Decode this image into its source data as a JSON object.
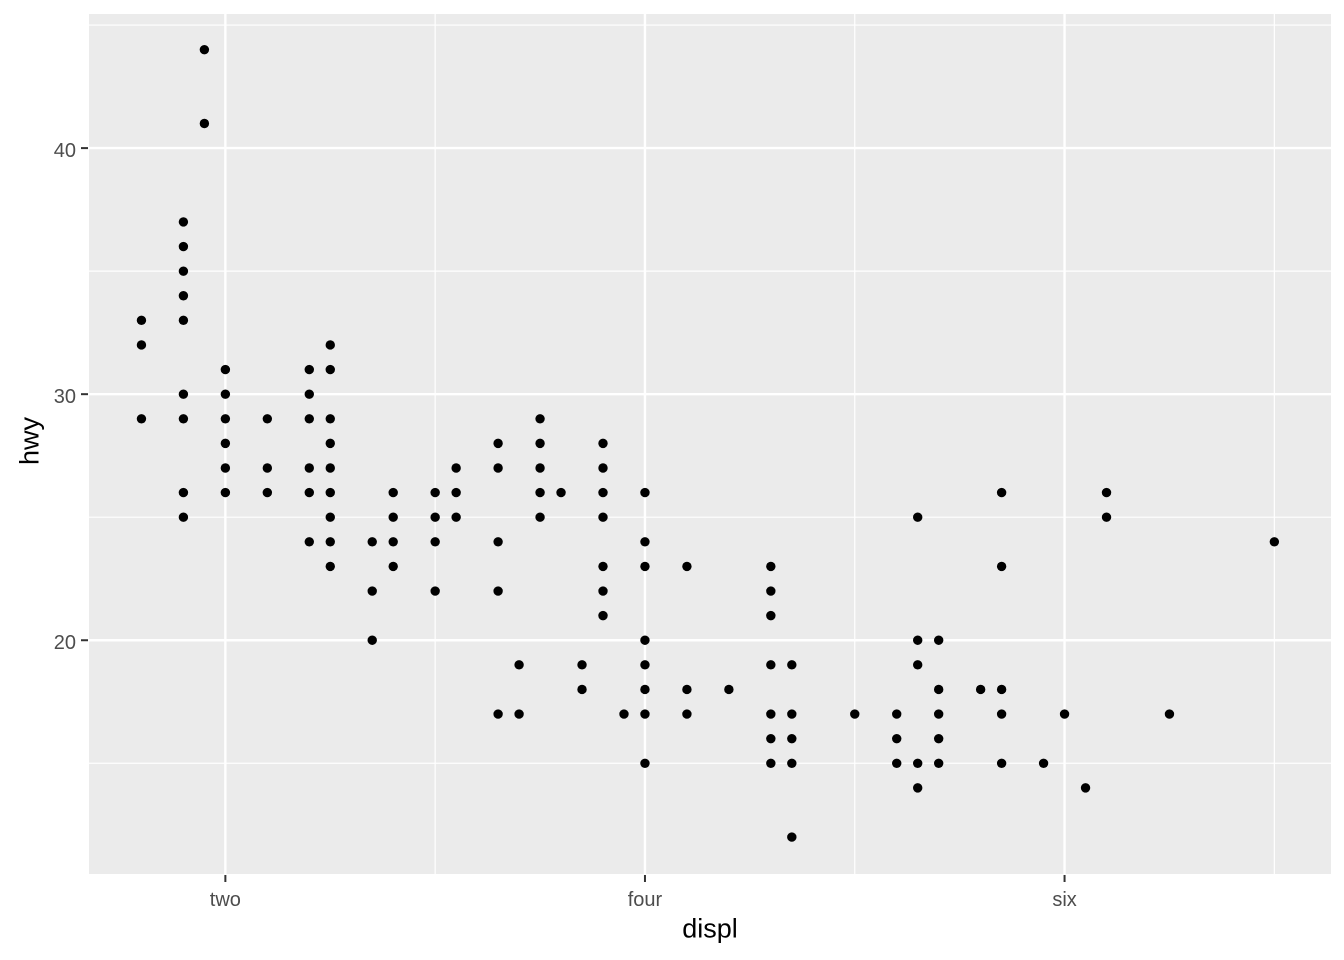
{
  "figure": {
    "background": "#FFFFFF",
    "panel_background": "#EBEBEB",
    "grid_color": "#FFFFFF",
    "point_color": "#000000",
    "tick_label_color": "#4D4D4D",
    "tick_mark_color": "#333333",
    "axis_title_color": "#000000"
  },
  "chart_data": {
    "type": "scatter",
    "title": "",
    "xlabel": "displ",
    "ylabel": "hwy",
    "grid": true,
    "legend": "none",
    "xlim": [
      1.35,
      7.27
    ],
    "ylim": [
      10.5,
      45.45
    ],
    "x_major_ticks": [
      {
        "value": 2,
        "label": "two"
      },
      {
        "value": 4,
        "label": "four"
      },
      {
        "value": 6,
        "label": "six"
      }
    ],
    "x_minor_ticks": [
      3,
      5,
      7
    ],
    "y_major_ticks": [
      {
        "value": 20,
        "label": "20"
      },
      {
        "value": 30,
        "label": "30"
      },
      {
        "value": 40,
        "label": "40"
      }
    ],
    "y_minor_ticks": [
      15,
      25,
      35,
      45
    ],
    "points": [
      [
        1.6,
        33
      ],
      [
        1.6,
        32
      ],
      [
        1.6,
        29
      ],
      [
        1.8,
        37
      ],
      [
        1.8,
        36
      ],
      [
        1.8,
        35
      ],
      [
        1.8,
        34
      ],
      [
        1.8,
        33
      ],
      [
        1.8,
        30
      ],
      [
        1.8,
        29
      ],
      [
        1.8,
        26
      ],
      [
        1.8,
        25
      ],
      [
        1.9,
        44
      ],
      [
        1.9,
        41
      ],
      [
        2.0,
        31
      ],
      [
        2.0,
        30
      ],
      [
        2.0,
        29
      ],
      [
        2.0,
        28
      ],
      [
        2.0,
        27
      ],
      [
        2.0,
        26
      ],
      [
        2.2,
        29
      ],
      [
        2.2,
        27
      ],
      [
        2.2,
        26
      ],
      [
        2.4,
        31
      ],
      [
        2.4,
        30
      ],
      [
        2.4,
        29
      ],
      [
        2.4,
        27
      ],
      [
        2.4,
        26
      ],
      [
        2.4,
        24
      ],
      [
        2.5,
        32
      ],
      [
        2.5,
        31
      ],
      [
        2.5,
        29
      ],
      [
        2.5,
        28
      ],
      [
        2.5,
        27
      ],
      [
        2.5,
        26
      ],
      [
        2.5,
        25
      ],
      [
        2.5,
        24
      ],
      [
        2.5,
        23
      ],
      [
        2.7,
        24
      ],
      [
        2.7,
        22
      ],
      [
        2.7,
        20
      ],
      [
        2.8,
        26
      ],
      [
        2.8,
        25
      ],
      [
        2.8,
        24
      ],
      [
        2.8,
        23
      ],
      [
        3.0,
        26
      ],
      [
        3.0,
        25
      ],
      [
        3.0,
        24
      ],
      [
        3.0,
        22
      ],
      [
        3.1,
        27
      ],
      [
        3.1,
        26
      ],
      [
        3.1,
        25
      ],
      [
        3.3,
        28
      ],
      [
        3.3,
        27
      ],
      [
        3.3,
        24
      ],
      [
        3.3,
        22
      ],
      [
        3.3,
        17
      ],
      [
        3.4,
        19
      ],
      [
        3.4,
        17
      ],
      [
        3.5,
        29
      ],
      [
        3.5,
        28
      ],
      [
        3.5,
        27
      ],
      [
        3.5,
        26
      ],
      [
        3.5,
        25
      ],
      [
        3.6,
        26
      ],
      [
        3.7,
        19
      ],
      [
        3.7,
        18
      ],
      [
        3.8,
        28
      ],
      [
        3.8,
        27
      ],
      [
        3.8,
        26
      ],
      [
        3.8,
        25
      ],
      [
        3.8,
        23
      ],
      [
        3.8,
        22
      ],
      [
        3.8,
        21
      ],
      [
        3.9,
        17
      ],
      [
        4.0,
        26
      ],
      [
        4.0,
        24
      ],
      [
        4.0,
        23
      ],
      [
        4.0,
        20
      ],
      [
        4.0,
        19
      ],
      [
        4.0,
        18
      ],
      [
        4.0,
        17
      ],
      [
        4.0,
        15
      ],
      [
        4.2,
        23
      ],
      [
        4.2,
        18
      ],
      [
        4.2,
        17
      ],
      [
        4.4,
        18
      ],
      [
        4.6,
        23
      ],
      [
        4.6,
        22
      ],
      [
        4.6,
        21
      ],
      [
        4.6,
        19
      ],
      [
        4.6,
        17
      ],
      [
        4.6,
        16
      ],
      [
        4.6,
        15
      ],
      [
        4.7,
        19
      ],
      [
        4.7,
        17
      ],
      [
        4.7,
        16
      ],
      [
        4.7,
        15
      ],
      [
        4.7,
        12
      ],
      [
        5.0,
        17
      ],
      [
        5.2,
        17
      ],
      [
        5.2,
        16
      ],
      [
        5.2,
        15
      ],
      [
        5.3,
        25
      ],
      [
        5.3,
        20
      ],
      [
        5.3,
        19
      ],
      [
        5.3,
        15
      ],
      [
        5.3,
        14
      ],
      [
        5.4,
        20
      ],
      [
        5.4,
        18
      ],
      [
        5.4,
        17
      ],
      [
        5.4,
        16
      ],
      [
        5.4,
        15
      ],
      [
        5.6,
        18
      ],
      [
        5.7,
        26
      ],
      [
        5.7,
        23
      ],
      [
        5.7,
        18
      ],
      [
        5.7,
        17
      ],
      [
        5.7,
        15
      ],
      [
        5.9,
        15
      ],
      [
        6.0,
        17
      ],
      [
        6.1,
        14
      ],
      [
        6.2,
        26
      ],
      [
        6.2,
        25
      ],
      [
        6.5,
        17
      ],
      [
        7.0,
        24
      ]
    ]
  }
}
